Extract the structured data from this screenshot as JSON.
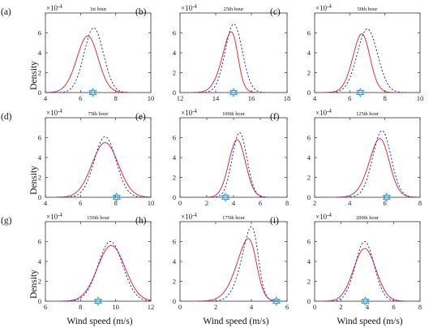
{
  "figure": {
    "ylabel": "Density",
    "xlabel": "Wind speed (m/s)",
    "y_exponent": "×10",
    "y_exponent_power": "-4"
  },
  "colors": {
    "kde_line": "#e0303a",
    "dashed_line": "#2233cc",
    "marker": "#3aa6df",
    "axis": "#333333"
  },
  "chart_data": [
    {
      "type": "line",
      "label": "(a)",
      "title": "1st hour",
      "xlim": [
        4,
        10
      ],
      "ylim": [
        0,
        8
      ],
      "xticks": [
        4,
        6,
        8,
        10
      ],
      "yticks": [
        0,
        2,
        4,
        6
      ],
      "series": [
        {
          "style": "solid",
          "mean": 6.75,
          "sd": 0.72,
          "peak": 5.7,
          "skew": -0.7
        },
        {
          "style": "dashed",
          "mean": 6.75,
          "sd": 0.55,
          "peak": 6.5,
          "skew": 0
        }
      ],
      "marker_x": 6.7
    },
    {
      "type": "line",
      "label": "(b)",
      "title": "25th hour",
      "xlim": [
        12,
        18
      ],
      "ylim": [
        0,
        8
      ],
      "xticks": [
        12,
        14,
        16,
        18
      ],
      "yticks": [
        0,
        2,
        4,
        6
      ],
      "series": [
        {
          "style": "solid",
          "mean": 15.2,
          "sd": 0.65,
          "peak": 6.1,
          "skew": -1.6
        },
        {
          "style": "dashed",
          "mean": 15.15,
          "sd": 0.5,
          "peak": 6.9,
          "skew": -0.3
        }
      ],
      "marker_x": 15.0
    },
    {
      "type": "line",
      "label": "(c)",
      "title": "50th hour",
      "xlim": [
        4,
        10
      ],
      "ylim": [
        0,
        8
      ],
      "xticks": [
        4,
        6,
        8,
        10
      ],
      "yticks": [
        0,
        2,
        4,
        6
      ],
      "series": [
        {
          "style": "solid",
          "mean": 7.0,
          "sd": 0.62,
          "peak": 5.9,
          "skew": -0.9
        },
        {
          "style": "dashed",
          "mean": 7.0,
          "sd": 0.58,
          "peak": 6.4,
          "skew": 0
        }
      ],
      "marker_x": 6.6
    },
    {
      "type": "line",
      "label": "(d)",
      "title": "75th hour",
      "xlim": [
        4,
        10
      ],
      "ylim": [
        0,
        8
      ],
      "xticks": [
        4,
        6,
        8,
        10
      ],
      "yticks": [
        0,
        2,
        4,
        6
      ],
      "series": [
        {
          "style": "solid",
          "mean": 7.4,
          "sd": 0.75,
          "peak": 5.5,
          "skew": 0
        },
        {
          "style": "dashed",
          "mean": 7.4,
          "sd": 0.62,
          "peak": 6.1,
          "skew": 0
        }
      ],
      "marker_x": 8.05
    },
    {
      "type": "line",
      "label": "(e)",
      "title": "100th hour",
      "xlim": [
        0,
        8
      ],
      "ylim": [
        0,
        8
      ],
      "xticks": [
        0,
        2,
        4,
        6,
        8
      ],
      "yticks": [
        0,
        2,
        4,
        6
      ],
      "series": [
        {
          "style": "solid",
          "mean": 4.45,
          "sd": 0.65,
          "peak": 5.8,
          "skew": -0.3
        },
        {
          "style": "dashed",
          "mean": 4.45,
          "sd": 0.55,
          "peak": 6.5,
          "skew": 0
        }
      ],
      "marker_x": 3.4
    },
    {
      "type": "line",
      "label": "(f)",
      "title": "125th hour",
      "xlim": [
        2,
        8
      ],
      "ylim": [
        0,
        8
      ],
      "xticks": [
        2,
        4,
        6,
        8
      ],
      "yticks": [
        0,
        2,
        4,
        6
      ],
      "series": [
        {
          "style": "solid",
          "mean": 6.1,
          "sd": 0.75,
          "peak": 5.9,
          "skew": -1.0
        },
        {
          "style": "dashed",
          "mean": 6.1,
          "sd": 0.6,
          "peak": 6.7,
          "skew": -0.6
        }
      ],
      "marker_x": 6.1
    },
    {
      "type": "line",
      "label": "(g)",
      "title": "150th hour",
      "xlim": [
        6,
        12
      ],
      "ylim": [
        0,
        8
      ],
      "xticks": [
        6,
        8,
        10,
        12
      ],
      "yticks": [
        0,
        2,
        4,
        6
      ],
      "series": [
        {
          "style": "solid",
          "mean": 9.75,
          "sd": 0.78,
          "peak": 5.6,
          "skew": 0
        },
        {
          "style": "dashed",
          "mean": 9.7,
          "sd": 0.7,
          "peak": 6.0,
          "skew": 0
        }
      ],
      "marker_x": 9.0
    },
    {
      "type": "line",
      "label": "(h)",
      "title": "175th hour",
      "xlim": [
        0,
        6
      ],
      "ylim": [
        0,
        8
      ],
      "xticks": [
        0,
        2,
        4,
        6
      ],
      "yticks": [
        0,
        2,
        4,
        6
      ],
      "series": [
        {
          "style": "solid",
          "mean": 4.25,
          "sd": 0.85,
          "peak": 6.3,
          "skew": -1.8
        },
        {
          "style": "dashed",
          "mean": 4.35,
          "sd": 0.7,
          "peak": 7.5,
          "skew": -1.8
        }
      ],
      "marker_x": 5.4
    },
    {
      "type": "line",
      "label": "(i)",
      "title": "200th hour",
      "xlim": [
        0,
        8
      ],
      "ylim": [
        0,
        8
      ],
      "xticks": [
        0,
        2,
        4,
        6,
        8
      ],
      "yticks": [
        0,
        2,
        4,
        6
      ],
      "series": [
        {
          "style": "solid",
          "mean": 3.8,
          "sd": 0.85,
          "peak": 5.3,
          "skew": 0
        },
        {
          "style": "dashed",
          "mean": 3.8,
          "sd": 0.72,
          "peak": 6.0,
          "skew": 0
        }
      ],
      "marker_x": 3.85
    }
  ]
}
